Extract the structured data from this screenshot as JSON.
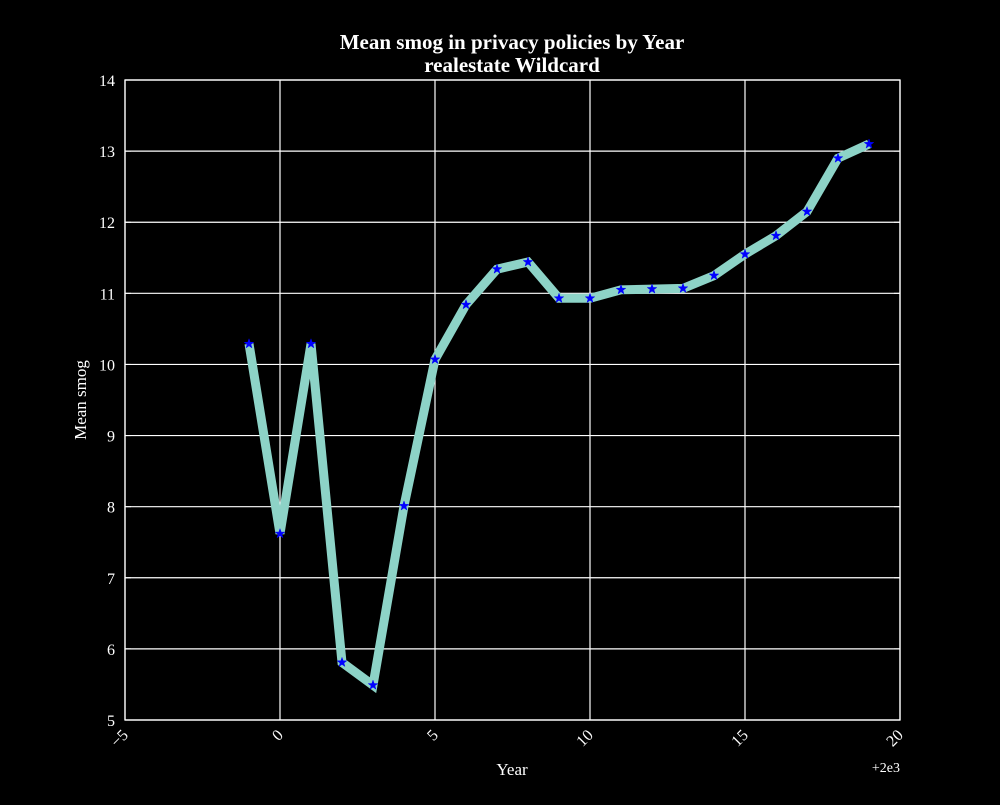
{
  "chart_data": {
    "type": "line",
    "title": "Mean smog in privacy policies by Year",
    "subtitle": "realestate Wildcard",
    "xlabel": "Year",
    "ylabel": "Mean smog",
    "x_offset_label": "+2e3",
    "xlim": [
      -5,
      20
    ],
    "ylim": [
      5,
      14
    ],
    "x_ticks": [
      "−5",
      "0",
      "5",
      "10",
      "15",
      "20"
    ],
    "x_tick_values": [
      -5,
      0,
      5,
      10,
      15,
      20
    ],
    "y_ticks": [
      "5",
      "6",
      "7",
      "8",
      "9",
      "10",
      "11",
      "12",
      "13",
      "14"
    ],
    "y_tick_values": [
      5,
      6,
      7,
      8,
      9,
      10,
      11,
      12,
      13,
      14
    ],
    "grid": true,
    "series": [
      {
        "x": [
          -1,
          0,
          1,
          2,
          3,
          4,
          5,
          6,
          7,
          8,
          9,
          10,
          11,
          12,
          13,
          14,
          15,
          16,
          17,
          18,
          19
        ],
        "values": [
          10.29,
          7.62,
          10.29,
          5.81,
          5.49,
          8.01,
          10.07,
          10.84,
          11.34,
          11.44,
          10.93,
          10.93,
          11.05,
          11.06,
          11.07,
          11.25,
          11.55,
          11.81,
          12.15,
          12.9,
          13.1
        ],
        "line_color": "#8dd3c7",
        "marker_color": "#0000ff",
        "marker": "star"
      }
    ],
    "colors": {
      "background": "#000000",
      "axes": "#ffffff",
      "grid": "#ffffff",
      "text": "#ffffff"
    }
  }
}
